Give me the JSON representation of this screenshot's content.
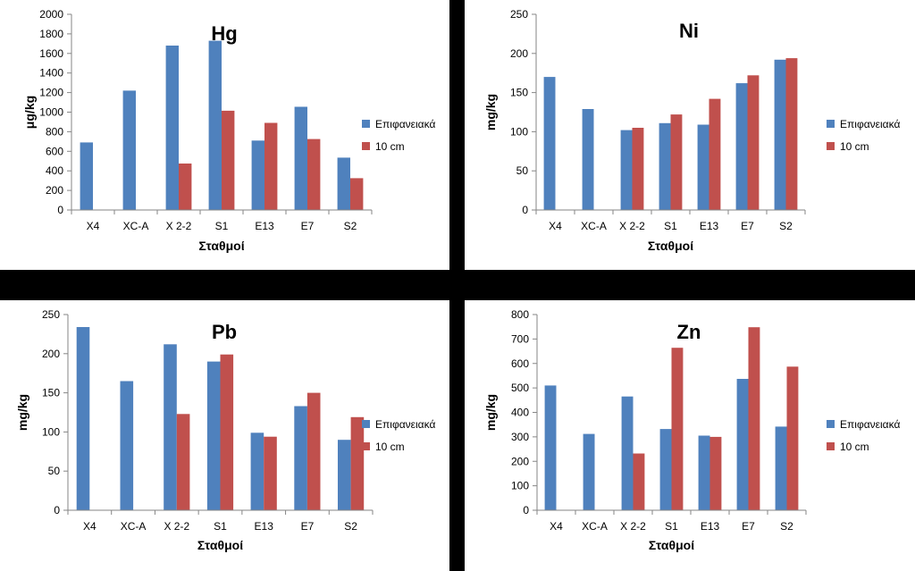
{
  "chart_data": [
    {
      "type": "bar",
      "title": "Hg",
      "xlabel": "Σταθμοί",
      "ylabel": "μg/kg",
      "categories": [
        "X4",
        "XC-A",
        "X 2-2",
        "S1",
        "E13",
        "E7",
        "S2"
      ],
      "series": [
        {
          "name": "Επιφανειακά",
          "values": [
            690,
            1220,
            1680,
            1730,
            710,
            1055,
            535
          ]
        },
        {
          "name": "10 cm",
          "values": [
            null,
            null,
            475,
            1015,
            890,
            725,
            325
          ]
        }
      ],
      "ylim": [
        0,
        2000
      ],
      "yticks": [
        0,
        200,
        400,
        600,
        800,
        1000,
        1200,
        1400,
        1600,
        1800,
        2000
      ],
      "legend": "right",
      "grid": false
    },
    {
      "type": "bar",
      "title": "Ni",
      "xlabel": "Σταθμοί",
      "ylabel": "mg/kg",
      "categories": [
        "X4",
        "XC-A",
        "X 2-2",
        "S1",
        "E13",
        "E7",
        "S2"
      ],
      "series": [
        {
          "name": "Επιφανειακά",
          "values": [
            170,
            129,
            102,
            111,
            109,
            162,
            192
          ]
        },
        {
          "name": "10 cm",
          "values": [
            null,
            null,
            105,
            122,
            142,
            172,
            194
          ]
        }
      ],
      "ylim": [
        0,
        250
      ],
      "yticks": [
        0,
        50,
        100,
        150,
        200,
        250
      ],
      "legend": "right",
      "grid": false
    },
    {
      "type": "bar",
      "title": "Pb",
      "xlabel": "Σταθμοί",
      "ylabel": "mg/kg",
      "categories": [
        "X4",
        "XC-A",
        "X 2-2",
        "S1",
        "E13",
        "E7",
        "S2"
      ],
      "series": [
        {
          "name": "Επιφανειακά",
          "values": [
            234,
            165,
            212,
            190,
            99,
            133,
            90
          ]
        },
        {
          "name": "10 cm",
          "values": [
            null,
            null,
            123,
            199,
            94,
            150,
            119
          ]
        }
      ],
      "ylim": [
        0,
        250
      ],
      "yticks": [
        0,
        50,
        100,
        150,
        200,
        250
      ],
      "legend": "right",
      "grid": false
    },
    {
      "type": "bar",
      "title": "Zn",
      "xlabel": "Σταθμοί",
      "ylabel": "mg/kg",
      "categories": [
        "X4",
        "XC-A",
        "X 2-2",
        "S1",
        "E13",
        "E7",
        "S2"
      ],
      "series": [
        {
          "name": "Επιφανειακά",
          "values": [
            510,
            312,
            465,
            332,
            305,
            537,
            342
          ]
        },
        {
          "name": "10 cm",
          "values": [
            null,
            null,
            232,
            664,
            300,
            748,
            587
          ]
        }
      ],
      "ylim": [
        0,
        800
      ],
      "yticks": [
        0,
        100,
        200,
        300,
        400,
        500,
        600,
        700,
        800
      ],
      "legend": "right",
      "grid": false
    }
  ],
  "colors": {
    "series1": "#4F81BD",
    "series2": "#C0504D",
    "axis": "#868686"
  }
}
